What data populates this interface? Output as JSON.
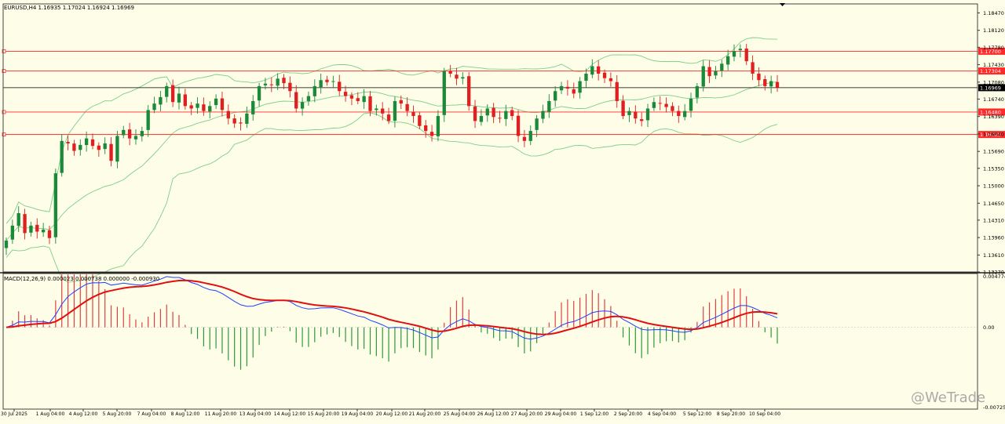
{
  "header": {
    "symbol_line": "EURUSD,H4  1.16935 1.17024 1.16924 1.16969",
    "macd_line": "MACD(12,26,9) 0.000023 0.000738 0.000000 -0.000930"
  },
  "watermark": "@WeTrade",
  "colors": {
    "background": "#fdfde8",
    "bull": "#1a8a3a",
    "bear": "#e02020",
    "band": "#7ccf8a",
    "level_line": "#ff2a2a",
    "current_price": "#000000",
    "macd_main": "#1f3fff",
    "macd_signal": "#e01010",
    "hist_pos": "#e04040",
    "hist_neg": "#2a9a3a"
  },
  "chart_data": [
    {
      "type": "candlestick",
      "title": "EURUSD,H4",
      "ohlc_readout": {
        "open": 1.16935,
        "high": 1.17024,
        "low": 1.16924,
        "close": 1.16969
      },
      "ylim": [
        1.1327,
        1.1865
      ],
      "y_ticks": [
        "1.18470",
        "1.18120",
        "1.17780",
        "1.17430",
        "1.17080",
        "1.16740",
        "1.16390",
        "1.16040",
        "1.15690",
        "1.15350",
        "1.15000",
        "1.14650",
        "1.14310",
        "1.13960",
        "1.13610",
        "1.13270"
      ],
      "x_tick_labels": [
        "30 Jul 2025",
        "1 Aug 04:00",
        "4 Aug 12:00",
        "5 Aug 20:00",
        "7 Aug 04:00",
        "8 Aug 12:00",
        "11 Aug 20:00",
        "13 Aug 04:00",
        "14 Aug 12:00",
        "15 Aug 20:00",
        "19 Aug 04:00",
        "20 Aug 12:00",
        "21 Aug 20:00",
        "25 Aug 04:00",
        "26 Aug 12:00",
        "27 Aug 20:00",
        "29 Aug 04:00",
        "1 Sep 12:00",
        "2 Sep 20:00",
        "4 Sep 04:00",
        "5 Sep 12:00",
        "8 Sep 20:00",
        "10 Sep 04:00"
      ],
      "price_levels": [
        {
          "label": "1.17700",
          "value": 1.177
        },
        {
          "label": "1.17304",
          "value": 1.17304
        },
        {
          "label": "1.16480",
          "value": 1.1648
        },
        {
          "label": "1.16029",
          "value": 1.16029
        }
      ],
      "current_price": {
        "label": "1.16969",
        "value": 1.16969
      },
      "series_closes": [
        1.139,
        1.142,
        1.1445,
        1.1405,
        1.142,
        1.1408,
        1.1412,
        1.1395,
        1.1525,
        1.159,
        1.1585,
        1.157,
        1.1582,
        1.1595,
        1.158,
        1.1572,
        1.1585,
        1.155,
        1.16,
        1.1612,
        1.1595,
        1.16,
        1.161,
        1.1652,
        1.1665,
        1.1678,
        1.17,
        1.1668,
        1.1685,
        1.166,
        1.1655,
        1.1665,
        1.165,
        1.166,
        1.1675,
        1.1652,
        1.1635,
        1.1625,
        1.1625,
        1.1645,
        1.167,
        1.17,
        1.1705,
        1.1702,
        1.1715,
        1.1706,
        1.169,
        1.1655,
        1.1668,
        1.168,
        1.17,
        1.1712,
        1.1708,
        1.171,
        1.169,
        1.168,
        1.1675,
        1.167,
        1.168,
        1.165,
        1.1655,
        1.1645,
        1.163,
        1.167,
        1.1665,
        1.165,
        1.164,
        1.162,
        1.161,
        1.16,
        1.164,
        1.173,
        1.1725,
        1.1715,
        1.1718,
        1.166,
        1.163,
        1.164,
        1.1655,
        1.1638,
        1.1635,
        1.165,
        1.164,
        1.16,
        1.159,
        1.161,
        1.1635,
        1.165,
        1.167,
        1.169,
        1.17,
        1.1695,
        1.1685,
        1.171,
        1.1725,
        1.174,
        1.1725,
        1.1716,
        1.171,
        1.167,
        1.164,
        1.165,
        1.1635,
        1.163,
        1.1655,
        1.1668,
        1.1665,
        1.1658,
        1.165,
        1.164,
        1.165,
        1.1675,
        1.17,
        1.174,
        1.172,
        1.173,
        1.1745,
        1.176,
        1.177,
        1.1775,
        1.175,
        1.1725,
        1.1712,
        1.17,
        1.171,
        1.1697
      ]
    },
    {
      "type": "line",
      "title": "MACD(12,26,9)",
      "values": {
        "main": 2.3e-05,
        "signal": 0.000738,
        "hist": 0.0,
        "other": -0.00093
      },
      "ylim": [
        -0.007257,
        0.004774
      ],
      "y_ticks": [
        "0.004774",
        "0.00",
        "-0.007257"
      ],
      "series": [
        {
          "name": "MACD",
          "role": "main"
        },
        {
          "name": "Signal",
          "role": "signal"
        }
      ]
    }
  ]
}
